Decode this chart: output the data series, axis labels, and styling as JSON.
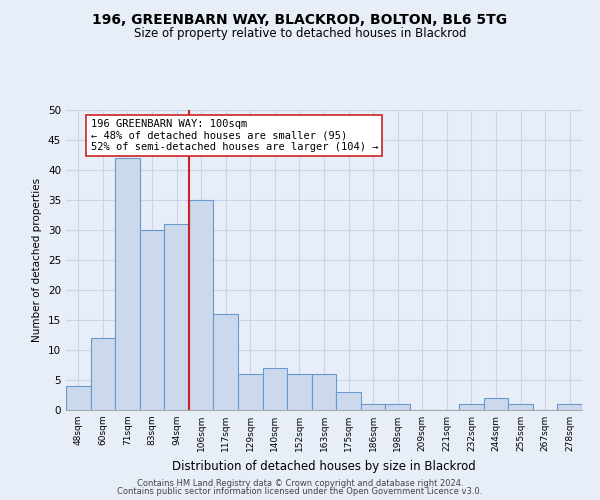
{
  "title1": "196, GREENBARN WAY, BLACKROD, BOLTON, BL6 5TG",
  "title2": "Size of property relative to detached houses in Blackrod",
  "xlabel": "Distribution of detached houses by size in Blackrod",
  "ylabel": "Number of detached properties",
  "bin_labels": [
    "48sqm",
    "60sqm",
    "71sqm",
    "83sqm",
    "94sqm",
    "106sqm",
    "117sqm",
    "129sqm",
    "140sqm",
    "152sqm",
    "163sqm",
    "175sqm",
    "186sqm",
    "198sqm",
    "209sqm",
    "221sqm",
    "232sqm",
    "244sqm",
    "255sqm",
    "267sqm",
    "278sqm"
  ],
  "bar_heights": [
    4,
    12,
    42,
    30,
    31,
    35,
    16,
    6,
    7,
    6,
    6,
    3,
    1,
    1,
    0,
    0,
    1,
    2,
    1,
    0,
    1
  ],
  "bar_color": "#ccd9ed",
  "bar_edge_color": "#6699cc",
  "vline_index": 5,
  "property_line_label": "196 GREENBARN WAY: 100sqm",
  "annotation_smaller": "← 48% of detached houses are smaller (95)",
  "annotation_larger": "52% of semi-detached houses are larger (104) →",
  "vline_color": "#cc2222",
  "ylim": [
    0,
    50
  ],
  "yticks": [
    0,
    5,
    10,
    15,
    20,
    25,
    30,
    35,
    40,
    45,
    50
  ],
  "background_color": "#e8eef8",
  "plot_bg_color": "#e8eef8",
  "grid_color": "#c8d4e8",
  "footer1": "Contains HM Land Registry data © Crown copyright and database right 2024.",
  "footer2": "Contains public sector information licensed under the Open Government Licence v3.0."
}
